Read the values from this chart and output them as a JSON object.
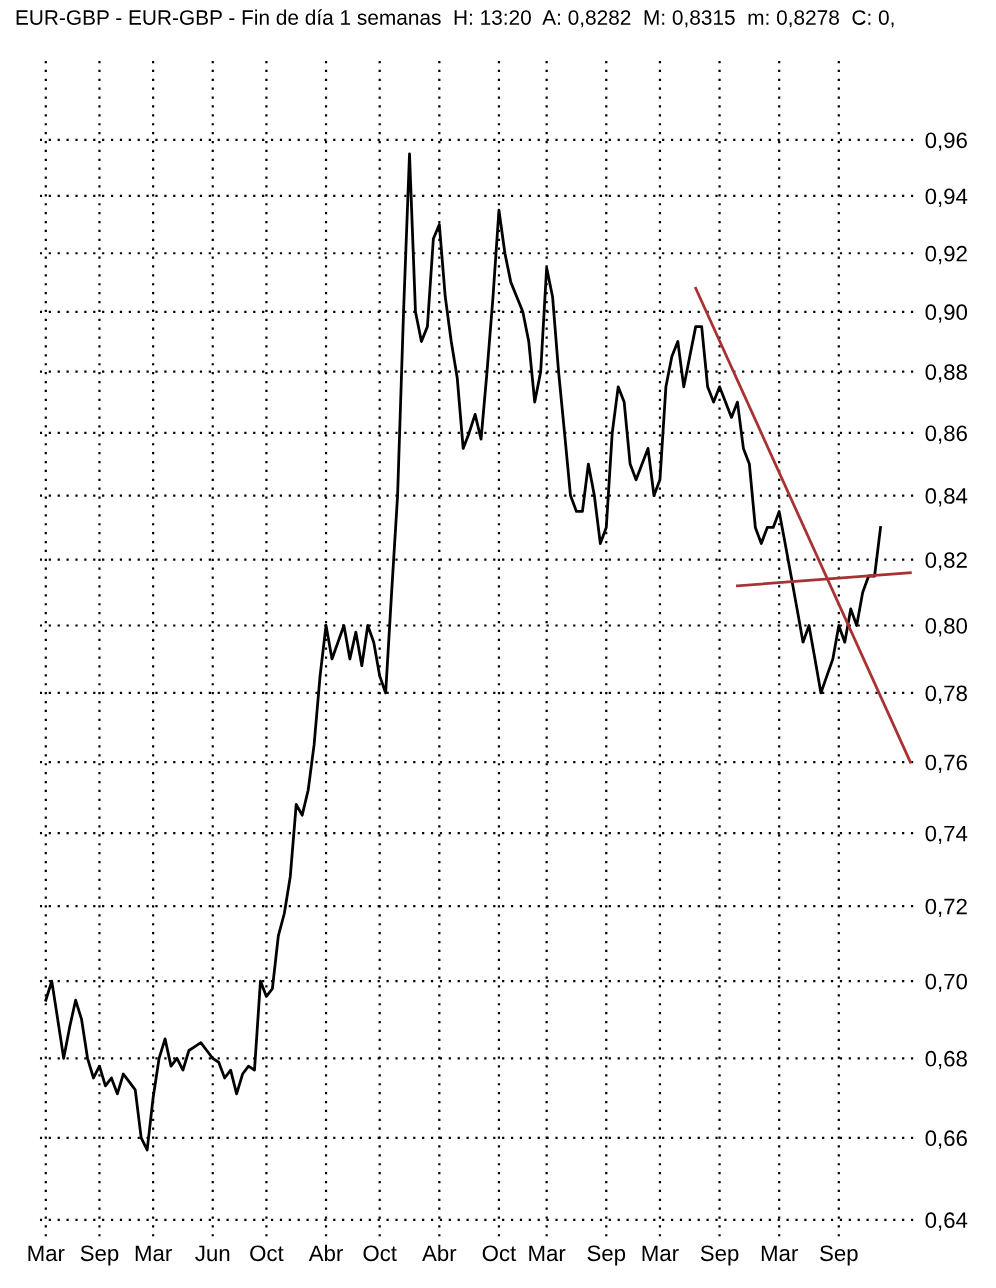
{
  "chart_data": {
    "type": "line",
    "title": "EUR-GBP - EUR-GBP - Fin de día 1 semanas  H: 13:20  A: 0,8282  M: 0,8315  m: 0,8278  C: 0,",
    "log": true,
    "grid": true,
    "legend": false,
    "marker": "none",
    "line_style": "solid",
    "categories": [
      "Mar",
      null,
      null,
      null,
      null,
      null,
      null,
      null,
      null,
      "Sep",
      null,
      null,
      null,
      null,
      null,
      null,
      null,
      null,
      "Mar",
      null,
      null,
      null,
      null,
      null,
      null,
      null,
      null,
      null,
      "Jun",
      null,
      null,
      null,
      null,
      null,
      null,
      null,
      null,
      "Oct",
      null,
      null,
      null,
      null,
      null,
      null,
      null,
      null,
      null,
      "Abr",
      null,
      null,
      null,
      null,
      null,
      null,
      null,
      null,
      "Oct",
      null,
      null,
      null,
      null,
      null,
      null,
      null,
      null,
      null,
      "Abr",
      null,
      null,
      null,
      null,
      null,
      null,
      null,
      null,
      null,
      "Oct",
      null,
      null,
      null,
      null,
      null,
      null,
      null,
      "Mar",
      null,
      null,
      null,
      null,
      null,
      null,
      null,
      null,
      null,
      "Sep",
      null,
      null,
      null,
      null,
      null,
      null,
      null,
      null,
      "Mar",
      null,
      null,
      null,
      null,
      null,
      null,
      null,
      null,
      null,
      "Sep",
      null,
      null,
      null,
      null,
      null,
      null,
      null,
      null,
      null,
      "Mar",
      null,
      null,
      null,
      null,
      null,
      null,
      null,
      null,
      null,
      "Sep",
      null,
      null,
      null,
      null,
      null,
      null,
      null,
      null,
      null,
      null,
      null,
      null
    ],
    "ylim": [
      0.636,
      0.99
    ],
    "yticks": [
      {
        "value": 0.64,
        "label": "0,64"
      },
      {
        "value": 0.66,
        "label": "0,66"
      },
      {
        "value": 0.68,
        "label": "0,68"
      },
      {
        "value": 0.7,
        "label": "0,70"
      },
      {
        "value": 0.72,
        "label": "0,72"
      },
      {
        "value": 0.74,
        "label": "0,74"
      },
      {
        "value": 0.76,
        "label": "0,76"
      },
      {
        "value": 0.78,
        "label": "0,78"
      },
      {
        "value": 0.8,
        "label": "0,80"
      },
      {
        "value": 0.82,
        "label": "0,82"
      },
      {
        "value": 0.84,
        "label": "0,84"
      },
      {
        "value": 0.86,
        "label": "0,86"
      },
      {
        "value": 0.88,
        "label": "0,88"
      },
      {
        "value": 0.9,
        "label": "0,90"
      },
      {
        "value": 0.92,
        "label": "0,92"
      },
      {
        "value": 0.94,
        "label": "0,94"
      },
      {
        "value": 0.96,
        "label": "0,96"
      }
    ],
    "series": [
      {
        "color": "#000000",
        "values": [
          0.695,
          0.7,
          0.69,
          0.68,
          0.688,
          0.695,
          0.69,
          0.68,
          0.675,
          0.678,
          0.673,
          0.675,
          0.671,
          0.676,
          0.674,
          0.672,
          0.66,
          0.657,
          0.67,
          0.68,
          0.685,
          0.678,
          0.68,
          0.677,
          0.682,
          0.683,
          0.684,
          0.682,
          0.68,
          0.679,
          0.675,
          0.677,
          0.671,
          0.676,
          0.678,
          0.677,
          0.7,
          0.696,
          0.698,
          0.712,
          0.718,
          0.728,
          0.748,
          0.745,
          0.752,
          0.765,
          0.785,
          0.8,
          0.79,
          0.795,
          0.8,
          0.79,
          0.798,
          0.788,
          0.8,
          0.795,
          0.785,
          0.78,
          0.81,
          0.84,
          0.9,
          0.955,
          0.9,
          0.89,
          0.895,
          0.925,
          0.93,
          0.905,
          0.89,
          0.878,
          0.855,
          0.86,
          0.866,
          0.858,
          0.88,
          0.905,
          0.935,
          0.92,
          0.91,
          0.905,
          0.9,
          0.89,
          0.87,
          0.88,
          0.915,
          0.905,
          0.88,
          0.86,
          0.84,
          0.835,
          0.835,
          0.85,
          0.84,
          0.825,
          0.83,
          0.86,
          0.875,
          0.87,
          0.85,
          0.845,
          0.85,
          0.855,
          0.84,
          0.845,
          0.875,
          0.885,
          0.89,
          0.875,
          0.885,
          0.895,
          0.895,
          0.875,
          0.87,
          0.875,
          0.87,
          0.865,
          0.87,
          0.855,
          0.85,
          0.83,
          0.825,
          0.83,
          0.83,
          0.835,
          0.825,
          0.815,
          0.805,
          0.795,
          0.8,
          0.79,
          0.78,
          0.785,
          0.79,
          0.8,
          0.795,
          0.805,
          0.8,
          0.81,
          0.815,
          0.815,
          0.83,
          null,
          null,
          null,
          null,
          null
        ]
      },
      {
        "color": "#a83232",
        "values": [
          null,
          null,
          null,
          null,
          null,
          null,
          null,
          null,
          null,
          null,
          null,
          null,
          null,
          null,
          null,
          null,
          null,
          null,
          null,
          null,
          null,
          null,
          null,
          null,
          null,
          null,
          null,
          null,
          null,
          null,
          null,
          null,
          null,
          null,
          null,
          null,
          null,
          null,
          null,
          null,
          null,
          null,
          null,
          null,
          null,
          null,
          null,
          null,
          null,
          null,
          null,
          null,
          null,
          null,
          null,
          null,
          null,
          null,
          null,
          null,
          null,
          null,
          null,
          null,
          null,
          null,
          null,
          null,
          null,
          null,
          null,
          null,
          null,
          null,
          null,
          null,
          null,
          null,
          null,
          null,
          null,
          null,
          null,
          null,
          null,
          null,
          null,
          null,
          null,
          null,
          null,
          null,
          null,
          null,
          null,
          null,
          null,
          null,
          null,
          null,
          null,
          null,
          null,
          null,
          null,
          null,
          null,
          null,
          null,
          0.908,
          null,
          null,
          null,
          null,
          null,
          null,
          null,
          null,
          null,
          null,
          null,
          null,
          null,
          null,
          null,
          null,
          null,
          null,
          null,
          null,
          null,
          null,
          null,
          null,
          null,
          null,
          null,
          null,
          null,
          null,
          null,
          null,
          null,
          null,
          null,
          0.76
        ]
      },
      {
        "color": "#a83232",
        "values": [
          null,
          null,
          null,
          null,
          null,
          null,
          null,
          null,
          null,
          null,
          null,
          null,
          null,
          null,
          null,
          null,
          null,
          null,
          null,
          null,
          null,
          null,
          null,
          null,
          null,
          null,
          null,
          null,
          null,
          null,
          null,
          null,
          null,
          null,
          null,
          null,
          null,
          null,
          null,
          null,
          null,
          null,
          null,
          null,
          null,
          null,
          null,
          null,
          null,
          null,
          null,
          null,
          null,
          null,
          null,
          null,
          null,
          null,
          null,
          null,
          null,
          null,
          null,
          null,
          null,
          null,
          null,
          null,
          null,
          null,
          null,
          null,
          null,
          null,
          null,
          null,
          null,
          null,
          null,
          null,
          null,
          null,
          null,
          null,
          null,
          null,
          null,
          null,
          null,
          null,
          null,
          null,
          null,
          null,
          null,
          null,
          null,
          null,
          null,
          null,
          null,
          null,
          null,
          null,
          null,
          null,
          null,
          null,
          null,
          null,
          null,
          null,
          null,
          null,
          null,
          null,
          0.812,
          null,
          null,
          null,
          null,
          null,
          null,
          null,
          null,
          null,
          null,
          null,
          null,
          null,
          null,
          null,
          null,
          null,
          null,
          null,
          null,
          null,
          null,
          null,
          null,
          null,
          null,
          null,
          null,
          0.816
        ]
      }
    ]
  }
}
